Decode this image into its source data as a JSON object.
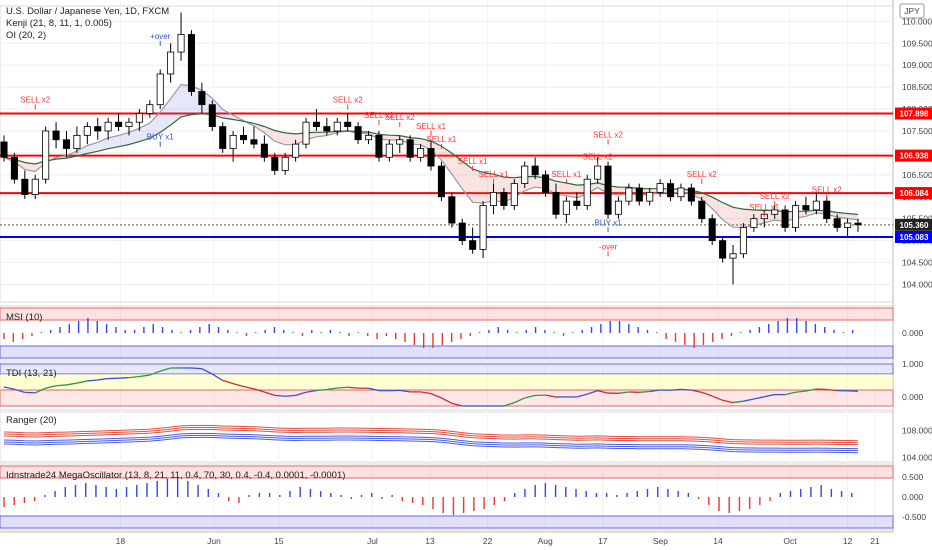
{
  "header": {
    "symbol_line": "U.S. Dollar / Japanese Yen, 1D, FXCM",
    "indicator1": "Kenji (21, 8, 11, 1, 0.005)",
    "indicator2": "OI (20, 2)",
    "currency_badge": "JPY"
  },
  "colors": {
    "up_candle": "#ffffff",
    "down_candle": "#000000",
    "resistance": "#ff0000",
    "support": "#0000ff",
    "sell_text": "#ff3333",
    "buy_text": "#3355cc",
    "ema_fast": "#9a9a9a",
    "ema_slow": "#2e6b3a"
  },
  "chart_data": [
    {
      "type": "line",
      "panel": "price",
      "title": "U.S. Dollar / Japanese Yen, 1D, FXCM",
      "y_ticks": [
        104.0,
        104.5,
        105.0,
        105.5,
        106.0,
        106.5,
        107.0,
        107.5,
        108.0,
        108.5,
        109.0,
        109.5,
        110.0
      ],
      "y_tick_labels": [
        "104.000",
        "104.500",
        "105.000",
        "105.500",
        "106.000",
        "106.500",
        "107.000",
        "107.500",
        "108.000",
        "108.500",
        "109.000",
        "109.500",
        "110.000"
      ],
      "ylim": [
        103.6,
        110.35
      ],
      "x_tick_labels": [
        "18",
        "Jun",
        "15",
        "Jul",
        "13",
        "22",
        "Aug",
        "17",
        "Sep",
        "14",
        "Oct",
        "12",
        "21"
      ],
      "horizontal_levels": [
        {
          "value": 107.898,
          "label": "107.898",
          "color": "#ff0000"
        },
        {
          "value": 106.938,
          "label": "106.938",
          "color": "#ff0000"
        },
        {
          "value": 106.084,
          "label": "106.084",
          "color": "#ff0000"
        },
        {
          "value": 105.083,
          "label": "105.083",
          "color": "#0000ff"
        }
      ],
      "last_price": {
        "value": 105.36,
        "label": "105.360"
      },
      "ohlc": [
        [
          107.25,
          107.4,
          106.8,
          106.9
        ],
        [
          106.9,
          107.0,
          106.3,
          106.4
        ],
        [
          106.4,
          106.6,
          105.95,
          106.05
        ],
        [
          106.05,
          106.5,
          105.95,
          106.4
        ],
        [
          106.4,
          107.6,
          106.3,
          107.5
        ],
        [
          107.5,
          107.7,
          107.1,
          107.3
        ],
        [
          107.3,
          107.5,
          106.9,
          107.1
        ],
        [
          107.1,
          107.6,
          107.0,
          107.4
        ],
        [
          107.4,
          107.7,
          107.2,
          107.6
        ],
        [
          107.6,
          107.8,
          107.3,
          107.5
        ],
        [
          107.5,
          107.8,
          107.3,
          107.7
        ],
        [
          107.7,
          107.9,
          107.5,
          107.6
        ],
        [
          107.6,
          107.8,
          107.4,
          107.7
        ],
        [
          107.7,
          108.0,
          107.5,
          107.9
        ],
        [
          107.9,
          108.2,
          107.8,
          108.1
        ],
        [
          108.1,
          108.9,
          108.0,
          108.8
        ],
        [
          108.8,
          109.5,
          108.6,
          109.3
        ],
        [
          109.3,
          110.2,
          109.1,
          109.7
        ],
        [
          109.7,
          109.8,
          108.3,
          108.4
        ],
        [
          108.4,
          108.6,
          107.9,
          108.1
        ],
        [
          108.1,
          108.2,
          107.5,
          107.6
        ],
        [
          107.6,
          107.7,
          107.0,
          107.1
        ],
        [
          107.1,
          107.5,
          106.8,
          107.4
        ],
        [
          107.4,
          107.6,
          107.2,
          107.3
        ],
        [
          107.3,
          107.6,
          107.1,
          107.2
        ],
        [
          107.2,
          107.4,
          106.8,
          106.9
        ],
        [
          106.9,
          107.0,
          106.5,
          106.6
        ],
        [
          106.6,
          107.0,
          106.5,
          106.9
        ],
        [
          106.9,
          107.3,
          106.8,
          107.2
        ],
        [
          107.2,
          107.8,
          107.1,
          107.7
        ],
        [
          107.7,
          108.0,
          107.5,
          107.6
        ],
        [
          107.6,
          107.8,
          107.4,
          107.5
        ],
        [
          107.5,
          107.8,
          107.4,
          107.7
        ],
        [
          107.7,
          107.9,
          107.5,
          107.6
        ],
        [
          107.6,
          107.7,
          107.2,
          107.3
        ],
        [
          107.3,
          107.5,
          107.2,
          107.4
        ],
        [
          107.4,
          107.5,
          106.8,
          106.9
        ],
        [
          106.9,
          107.3,
          106.8,
          107.2
        ],
        [
          107.2,
          107.4,
          107.0,
          107.3
        ],
        [
          107.3,
          107.4,
          106.8,
          106.9
        ],
        [
          106.9,
          107.2,
          106.8,
          107.1
        ],
        [
          107.1,
          107.3,
          106.6,
          106.7
        ],
        [
          106.7,
          106.8,
          105.9,
          106.0
        ],
        [
          106.0,
          106.1,
          105.3,
          105.4
        ],
        [
          105.4,
          105.5,
          104.9,
          105.0
        ],
        [
          105.0,
          105.3,
          104.7,
          104.8
        ],
        [
          104.8,
          105.9,
          104.6,
          105.8
        ],
        [
          105.8,
          106.3,
          105.6,
          106.1
        ],
        [
          106.1,
          106.2,
          105.7,
          105.8
        ],
        [
          105.8,
          106.4,
          105.7,
          106.3
        ],
        [
          106.3,
          106.8,
          106.2,
          106.7
        ],
        [
          106.7,
          106.9,
          106.4,
          106.5
        ],
        [
          106.5,
          106.6,
          106.0,
          106.1
        ],
        [
          106.1,
          106.3,
          105.5,
          105.6
        ],
        [
          105.6,
          106.0,
          105.4,
          105.9
        ],
        [
          105.9,
          106.1,
          105.7,
          105.8
        ],
        [
          105.8,
          106.5,
          105.7,
          106.4
        ],
        [
          106.4,
          106.9,
          106.3,
          106.7
        ],
        [
          106.7,
          106.8,
          105.5,
          105.6
        ],
        [
          105.6,
          106.0,
          105.5,
          105.9
        ],
        [
          105.9,
          106.3,
          105.8,
          106.2
        ],
        [
          106.2,
          106.3,
          105.8,
          105.9
        ],
        [
          105.9,
          106.2,
          105.8,
          106.1
        ],
        [
          106.1,
          106.4,
          106.0,
          106.3
        ],
        [
          106.3,
          106.4,
          105.9,
          106.0
        ],
        [
          106.0,
          106.3,
          105.9,
          106.2
        ],
        [
          106.2,
          106.3,
          105.8,
          105.9
        ],
        [
          105.9,
          106.0,
          105.4,
          105.5
        ],
        [
          105.5,
          105.6,
          104.9,
          105.0
        ],
        [
          105.0,
          105.1,
          104.5,
          104.6
        ],
        [
          104.6,
          104.9,
          104.0,
          104.7
        ],
        [
          104.7,
          105.4,
          104.6,
          105.3
        ],
        [
          105.3,
          105.6,
          105.2,
          105.5
        ],
        [
          105.5,
          105.7,
          105.3,
          105.6
        ],
        [
          105.6,
          105.8,
          105.5,
          105.7
        ],
        [
          105.7,
          105.8,
          105.2,
          105.3
        ],
        [
          105.3,
          105.9,
          105.2,
          105.8
        ],
        [
          105.8,
          106.0,
          105.6,
          105.7
        ],
        [
          105.7,
          106.1,
          105.6,
          105.9
        ],
        [
          105.9,
          106.0,
          105.4,
          105.5
        ],
        [
          105.5,
          105.6,
          105.2,
          105.3
        ],
        [
          105.3,
          105.5,
          105.1,
          105.4
        ],
        [
          105.4,
          105.5,
          105.2,
          105.36
        ]
      ],
      "signals": [
        {
          "text": "SELL x2",
          "color": "#ff3333",
          "bar": 3,
          "price": 108.15
        },
        {
          "text": "+over",
          "color": "#3355cc",
          "bar": 15,
          "price": 109.6
        },
        {
          "text": "BUY x1",
          "color": "#3355cc",
          "bar": 15,
          "price": 107.3
        },
        {
          "text": "SELL x2",
          "color": "#ff3333",
          "bar": 33,
          "price": 108.15
        },
        {
          "text": "SELL x2",
          "color": "#ff3333",
          "bar": 36,
          "price": 107.8
        },
        {
          "text": "SELL x2",
          "color": "#ff3333",
          "bar": 38,
          "price": 107.75
        },
        {
          "text": "SELL x1",
          "color": "#ff3333",
          "bar": 41,
          "price": 107.55
        },
        {
          "text": "SELL x1",
          "color": "#ff3333",
          "bar": 42,
          "price": 107.25
        },
        {
          "text": "SELL x1",
          "color": "#ff3333",
          "bar": 45,
          "price": 106.75
        },
        {
          "text": "SELL x1",
          "color": "#ff3333",
          "bar": 47,
          "price": 106.45
        },
        {
          "text": "SELL x2",
          "color": "#ff3333",
          "bar": 58,
          "price": 107.35
        },
        {
          "text": "SELL x2",
          "color": "#ff3333",
          "bar": 57,
          "price": 106.85
        },
        {
          "text": "SELL x1",
          "color": "#ff3333",
          "bar": 54,
          "price": 106.45
        },
        {
          "text": "BUY x1",
          "color": "#3355cc",
          "bar": 58,
          "price": 105.35
        },
        {
          "text": "-over",
          "color": "#ff3333",
          "bar": 58,
          "price": 104.8
        },
        {
          "text": "SELL x2",
          "color": "#ff3333",
          "bar": 67,
          "price": 106.45
        },
        {
          "text": "SELL x2",
          "color": "#ff3333",
          "bar": 74,
          "price": 105.95
        },
        {
          "text": "SELL x1",
          "color": "#ff3333",
          "bar": 73,
          "price": 105.7
        },
        {
          "text": "SELL x2",
          "color": "#ff3333",
          "bar": 79,
          "price": 106.1
        }
      ]
    },
    {
      "type": "bar",
      "panel": "MSI (10)",
      "title": "MSI (10)",
      "y_tick_labels": [
        "0.000"
      ],
      "values": [
        -2,
        -3,
        -2,
        -1,
        0,
        1,
        2,
        3,
        4,
        5,
        4,
        3,
        2,
        1,
        1,
        2,
        3,
        2,
        1,
        0,
        1,
        2,
        3,
        2,
        1,
        0,
        -1,
        0,
        1,
        2,
        1,
        0,
        -1,
        1,
        0,
        1,
        0,
        -1,
        0,
        -1,
        -2,
        -1,
        -2,
        -3,
        -4,
        -5,
        -5,
        -4,
        -3,
        -2,
        -1,
        0,
        1,
        2,
        1,
        0,
        1,
        2,
        1,
        0,
        -1,
        0,
        1,
        2,
        3,
        4,
        4,
        3,
        2,
        1,
        0,
        -2,
        -3,
        -4,
        -5,
        -4,
        -3,
        -2,
        -1,
        0,
        1,
        2,
        3,
        4,
        5,
        5,
        4,
        3,
        2,
        1,
        0,
        1
      ]
    },
    {
      "type": "line",
      "panel": "TDI (13, 21)",
      "title": "TDI (13, 21)",
      "y_tick_labels": [
        "1.000",
        "0.000"
      ]
    },
    {
      "type": "line",
      "panel": "Ranger (20)",
      "title": "Ranger (20)",
      "y_tick_labels": [
        "108.000",
        "104.000"
      ]
    },
    {
      "type": "bar",
      "panel": "Idnstrade24 MegaOscillator",
      "title": "Idnstrade24 MegaOscillator (13, 8, 21, 11, 0.4, 70, 30, 0.4, -0.4, 0.0001, -0.0001)",
      "y_tick_labels": [
        "0.500",
        "0.000",
        "-0.500"
      ],
      "values": [
        -0.25,
        -0.2,
        -0.15,
        -0.1,
        0.05,
        0.15,
        0.25,
        0.3,
        0.35,
        0.3,
        0.25,
        0.2,
        0.25,
        0.3,
        0.35,
        0.4,
        0.45,
        0.5,
        0.4,
        0.3,
        0.2,
        0.1,
        -0.1,
        -0.15,
        0.05,
        0.1,
        0.1,
        0.05,
        0.15,
        0.25,
        0.2,
        0.15,
        0.1,
        0.05,
        -0.05,
        0.05,
        0.1,
        -0.05,
        0.05,
        -0.1,
        -0.15,
        -0.2,
        -0.3,
        -0.4,
        -0.45,
        -0.4,
        -0.35,
        -0.3,
        -0.2,
        -0.1,
        0.1,
        0.2,
        0.3,
        0.35,
        0.3,
        0.25,
        0.2,
        0.15,
        0.1,
        0.1,
        0.05,
        0.1,
        0.15,
        0.2,
        0.25,
        0.2,
        0.15,
        0.1,
        -0.05,
        -0.2,
        -0.35,
        -0.4,
        -0.35,
        -0.3,
        -0.2,
        -0.1,
        0.1,
        0.15,
        0.2,
        0.25,
        0.3,
        0.2,
        0.15,
        0.1
      ]
    }
  ]
}
